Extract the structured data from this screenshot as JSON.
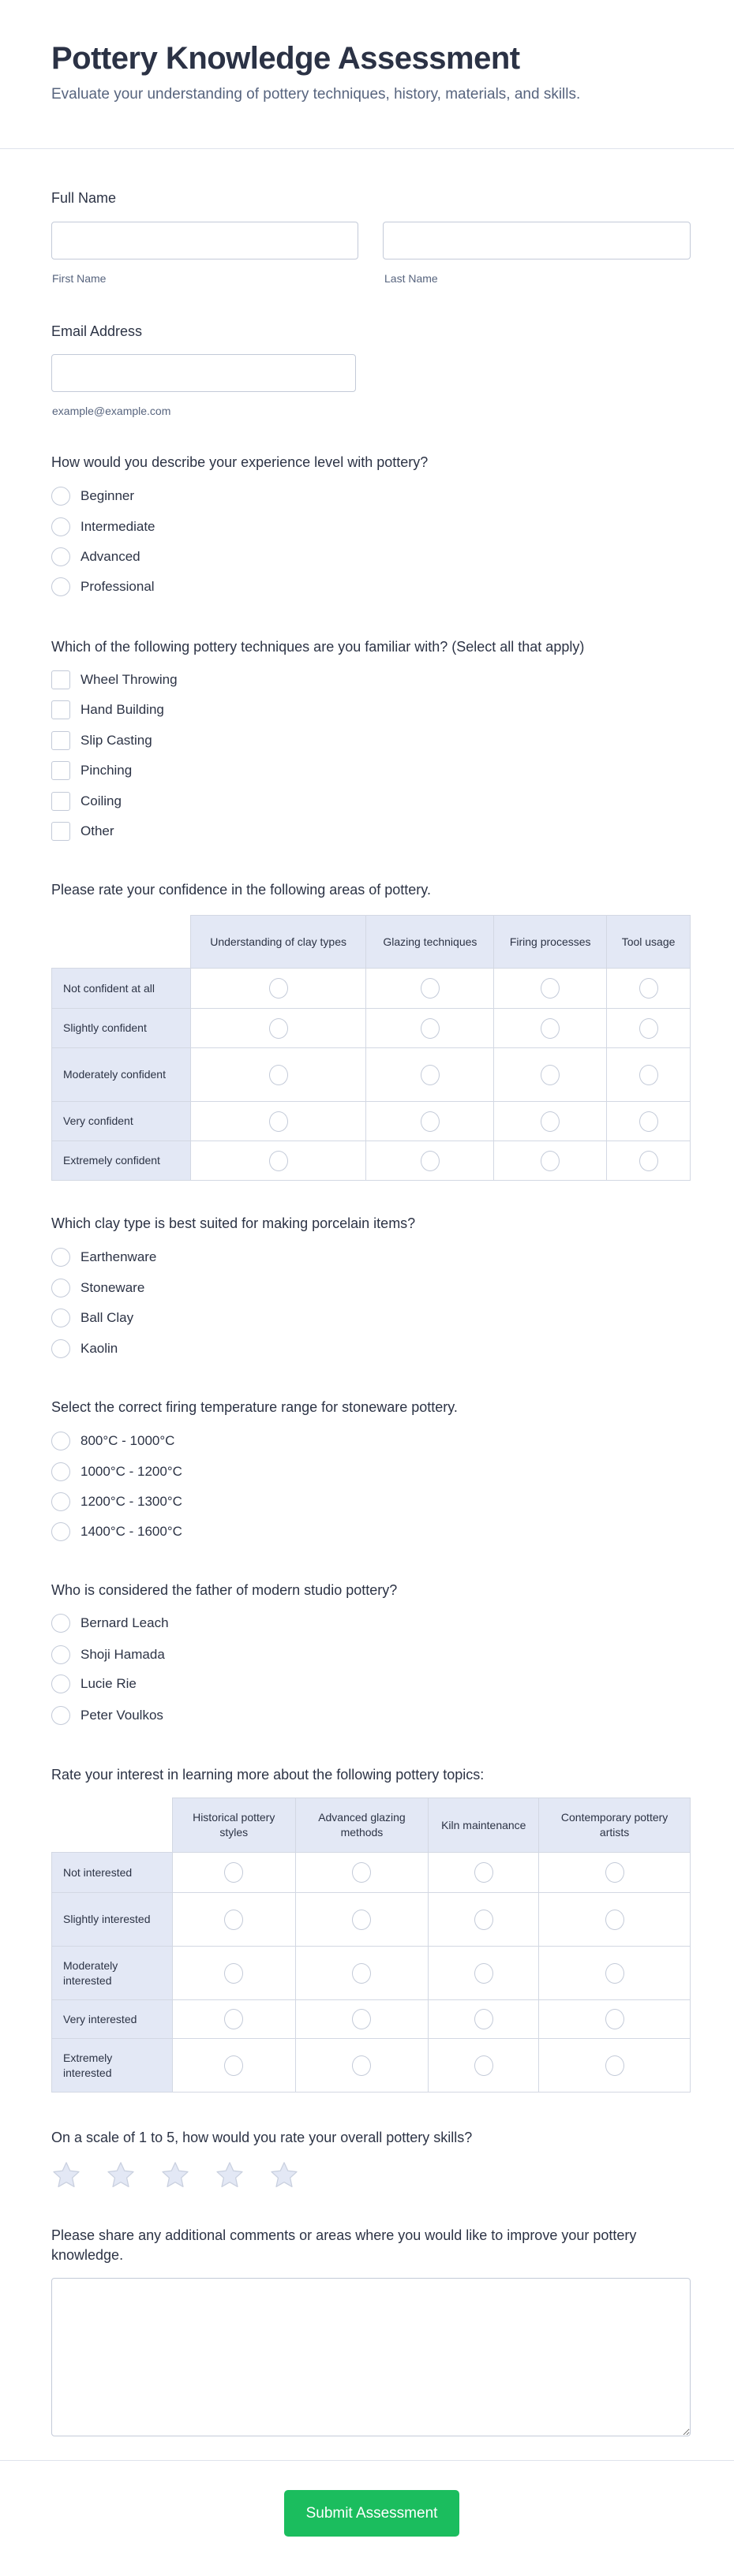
{
  "header": {
    "title": "Pottery Knowledge Assessment",
    "subtitle": "Evaluate your understanding of pottery techniques, history, materials, and skills."
  },
  "full_name": {
    "label": "Full Name",
    "first_label": "First Name",
    "last_label": "Last Name",
    "first_value": "",
    "last_value": ""
  },
  "email": {
    "label": "Email Address",
    "hint": "example@example.com",
    "value": ""
  },
  "experience": {
    "question": "How would you describe your experience level with pottery?",
    "options": [
      "Beginner",
      "Intermediate",
      "Advanced",
      "Professional"
    ]
  },
  "techniques": {
    "question": "Which of the following pottery techniques are you familiar with? (Select all that apply)",
    "options": [
      "Wheel Throwing",
      "Hand Building",
      "Slip Casting",
      "Pinching",
      "Coiling",
      "Other"
    ]
  },
  "confidence": {
    "question": "Please rate your confidence in the following areas of pottery.",
    "columns": [
      "Understanding of clay types",
      "Glazing techniques",
      "Firing processes",
      "Tool usage"
    ],
    "rows": [
      "Not confident at all",
      "Slightly confident",
      "Moderately confident",
      "Very confident",
      "Extremely confident"
    ]
  },
  "clay": {
    "question": "Which clay type is best suited for making porcelain items?",
    "options": [
      "Earthenware",
      "Stoneware",
      "Ball Clay",
      "Kaolin"
    ]
  },
  "firing": {
    "question": "Select the correct firing temperature range for stoneware pottery.",
    "options": [
      "800°C - 1000°C",
      "1000°C - 1200°C",
      "1200°C - 1300°C",
      "1400°C - 1600°C"
    ]
  },
  "father": {
    "question": "Who is considered the father of modern studio pottery?",
    "options": [
      "Bernard Leach",
      "Shoji Hamada",
      "Lucie Rie",
      "Peter Voulkos"
    ]
  },
  "interest": {
    "question": "Rate your interest in learning more about the following pottery topics:",
    "columns": [
      "Historical pottery styles",
      "Advanced glazing methods",
      "Kiln maintenance",
      "Contemporary pottery artists"
    ],
    "rows": [
      "Not interested",
      "Slightly interested",
      "Moderately interested",
      "Very interested",
      "Extremely interested"
    ]
  },
  "rating": {
    "question": "On a scale of 1 to 5, how would you rate your overall pottery skills?",
    "max": 5,
    "value": 0
  },
  "comments": {
    "question": "Please share any additional comments or areas where you would like to improve your pottery knowledge.",
    "value": ""
  },
  "submit_label": "Submit Assessment",
  "colors": {
    "accent": "#1bbd5e",
    "header_bg": "#e3e8f5",
    "border": "#c3cad8",
    "star": "#e3e8f5"
  }
}
